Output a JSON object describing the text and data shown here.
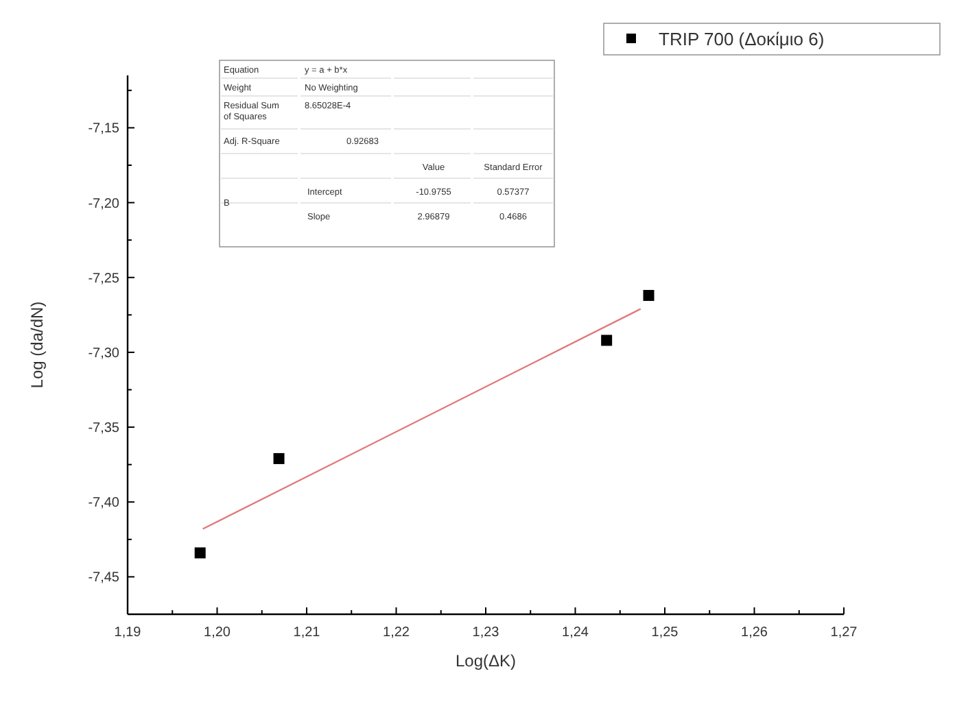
{
  "chart_data": {
    "type": "scatter",
    "xlabel": "Log(ΔK)",
    "ylabel": "Log (da/dN)",
    "xlim": [
      1.19,
      1.27
    ],
    "xticks": [
      {
        "value": 1.19,
        "label": "1,19"
      },
      {
        "value": 1.195,
        "label": null
      },
      {
        "value": 1.2,
        "label": "1,20"
      },
      {
        "value": 1.205,
        "label": null
      },
      {
        "value": 1.21,
        "label": "1,21"
      },
      {
        "value": 1.215,
        "label": null
      },
      {
        "value": 1.22,
        "label": "1,22"
      },
      {
        "value": 1.225,
        "label": null
      },
      {
        "value": 1.23,
        "label": "1,23"
      },
      {
        "value": 1.235,
        "label": null
      },
      {
        "value": 1.24,
        "label": "1,24"
      },
      {
        "value": 1.245,
        "label": null
      },
      {
        "value": 1.25,
        "label": "1,25"
      },
      {
        "value": 1.255,
        "label": null
      },
      {
        "value": 1.26,
        "label": "1,26"
      },
      {
        "value": 1.265,
        "label": null
      },
      {
        "value": 1.27,
        "label": "1,27"
      }
    ],
    "ylim": [
      -7.475,
      -7.115
    ],
    "yticks": [
      {
        "value": -7.45,
        "label": "-7,45"
      },
      {
        "value": -7.425,
        "label": null
      },
      {
        "value": -7.4,
        "label": "-7,40"
      },
      {
        "value": -7.375,
        "label": null
      },
      {
        "value": -7.35,
        "label": "-7,35"
      },
      {
        "value": -7.325,
        "label": null
      },
      {
        "value": -7.3,
        "label": "-7,30"
      },
      {
        "value": -7.275,
        "label": null
      },
      {
        "value": -7.25,
        "label": "-7,25"
      },
      {
        "value": -7.225,
        "label": null
      },
      {
        "value": -7.2,
        "label": "-7,20"
      },
      {
        "value": -7.175,
        "label": null
      },
      {
        "value": -7.15,
        "label": "-7,15"
      },
      {
        "value": -7.125,
        "label": null
      }
    ],
    "legend": "top right",
    "grid": false,
    "series": [
      {
        "name": "TRIP 700 (Δοκίμιο 6)",
        "marker": "square",
        "color": "#000000",
        "x": [
          1.1981,
          1.2069,
          1.2435,
          1.2482
        ],
        "values": [
          -7.434,
          -7.371,
          -7.292,
          -7.262
        ]
      },
      {
        "type": "line",
        "color": "#e07a7a",
        "x": [
          1.1984,
          1.2473
        ],
        "values": [
          -7.418,
          -7.271
        ]
      }
    ],
    "annotations": [
      "Equation",
      "y = a + b*x",
      "Weight",
      "No Weighting",
      "Residual Sum of Squares",
      "8.65028E-4",
      "Adj. R-Square",
      "0.92683",
      "Value",
      "Standard Error",
      "B",
      "Intercept",
      "-10.9755",
      "0.57377",
      "Slope",
      "2.96879",
      "0.4686"
    ]
  }
}
